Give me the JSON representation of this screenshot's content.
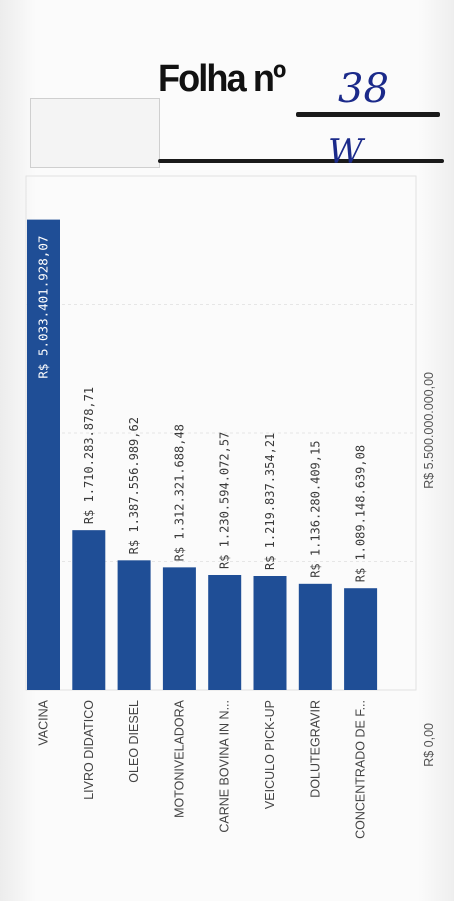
{
  "header": {
    "stamp_label": "Folha nº",
    "page_number": "38",
    "initials": "W"
  },
  "chart_data": {
    "type": "bar",
    "categories": [
      "VACINA",
      "LIVRO DIDATICO",
      "OLEO DIESEL",
      "MOTONIVELADORA",
      "CARNE BOVINA IN N...",
      "VEICULO PICK-UP",
      "DOLUTEGRAVIR",
      "CONCENTRADO DE F..."
    ],
    "values": [
      5033401928.07,
      1710283878.71,
      1387556989.62,
      1312321688.48,
      1230594072.57,
      1219837354.21,
      1136280409.15,
      1089148639.08
    ],
    "data_labels": [
      "R$ 5.033.401.928,07",
      "R$ 1.710.283.878,71",
      "R$ 1.387.556.989,62",
      "R$ 1.312.321.688,48",
      "R$ 1.230.594.072,57",
      "R$ 1.219.837.354,21",
      "R$ 1.136.280.409,15",
      "R$ 1.089.148.639,08"
    ],
    "axis_ticks": [
      "R$ 0,00",
      "R$ 5.500.000.000,00"
    ],
    "ylim": [
      0,
      5500000000
    ],
    "bar_color": "#1f4e96",
    "grid": true
  }
}
